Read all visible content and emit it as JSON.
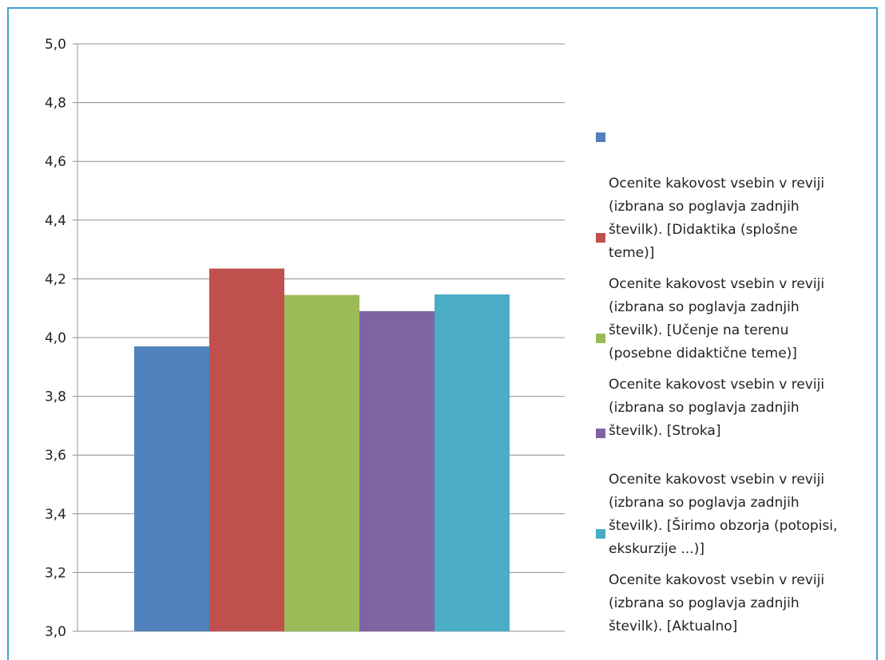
{
  "chart_data": {
    "type": "bar",
    "title": "",
    "xlabel": "",
    "ylabel": "",
    "ylim": [
      3.0,
      5.0
    ],
    "yticks": [
      "3,0",
      "3,2",
      "3,4",
      "3,6",
      "3,8",
      "4,0",
      "4,2",
      "4,4",
      "4,6",
      "4,8",
      "5,0"
    ],
    "grid": true,
    "legend_position": "right",
    "series": [
      {
        "name": "Ocenite kakovost vsebin v reviji (izbrana so poglavja zadnjih številk). [Didaktika (splošne teme)]",
        "value": 3.97,
        "color": "#4f81bd"
      },
      {
        "name": "Ocenite kakovost vsebin v reviji (izbrana so poglavja zadnjih številk). [Učenje na terenu (posebne didaktične teme)]",
        "value": 4.235,
        "color": "#c0504d"
      },
      {
        "name": "Ocenite kakovost vsebin v reviji (izbrana so poglavja zadnjih številk). [Stroka]",
        "value": 4.145,
        "color": "#9bbb59"
      },
      {
        "name": "Ocenite kakovost vsebin v reviji (izbrana so poglavja zadnjih številk). [Širimo obzorja (potopisi, ekskurzije ...)]",
        "value": 4.09,
        "color": "#8064a2"
      },
      {
        "name": "Ocenite kakovost vsebin v reviji (izbrana so poglavja zadnjih številk). [Aktualno]",
        "value": 4.147,
        "color": "#4bacc6"
      }
    ]
  },
  "legend_lines": [
    "Ocenite kakovost vsebin v reviji\n(izbrana so poglavja zadnjih\nštevilk). [Didaktika (splošne\nteme)]",
    "Ocenite kakovost vsebin v reviji\n(izbrana so poglavja zadnjih\nštevilk). [Učenje na terenu\n(posebne didaktične teme)]",
    "Ocenite kakovost vsebin v reviji\n(izbrana so poglavja zadnjih\nštevilk). [Stroka]",
    "Ocenite kakovost vsebin v reviji\n(izbrana so poglavja zadnjih\nštevilk). [Širimo obzorja (potopisi,\nekskurzije ...)]",
    "Ocenite kakovost vsebin v reviji\n(izbrana so poglavja zadnjih\nštevilk). [Aktualno]"
  ]
}
